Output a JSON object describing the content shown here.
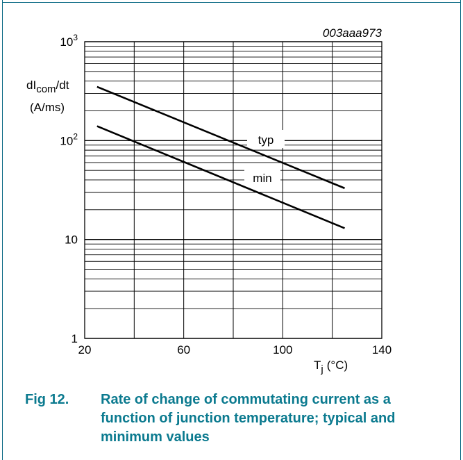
{
  "figure": {
    "code": "003aaa973",
    "caption_number": "Fig 12.",
    "caption_lines": [
      "Rate of change of commutating current as a",
      "function of junction temperature; typical and",
      "minimum values"
    ]
  },
  "colors": {
    "frame": "#0b6a85",
    "caption": "#0b7a8f",
    "grid": "#000000"
  },
  "chart_data": {
    "type": "line",
    "y_scale": "log",
    "xlim": [
      20,
      140
    ],
    "ylim": [
      1,
      1000
    ],
    "x_ticks": [
      20,
      60,
      100,
      140
    ],
    "x_tick_labels": [
      "20",
      "60",
      "100",
      "140"
    ],
    "y_tick_labels": [
      {
        "value": 1,
        "base": "1",
        "exp": ""
      },
      {
        "value": 10,
        "base": "10",
        "exp": ""
      },
      {
        "value": 100,
        "base": "10",
        "exp": "2"
      },
      {
        "value": 1000,
        "base": "10",
        "exp": "3"
      }
    ],
    "ylabel": {
      "main": "dI",
      "sub": "com",
      "tail": "/dt",
      "unit": "(A/ms)"
    },
    "xlabel": {
      "main": "T",
      "sub": "j",
      "unit": "(°C)"
    },
    "grid": true,
    "series": [
      {
        "name": "typ",
        "x": [
          25,
          125
        ],
        "y": [
          350,
          33
        ]
      },
      {
        "name": "min",
        "x": [
          25,
          125
        ],
        "y": [
          140,
          13
        ]
      }
    ]
  }
}
